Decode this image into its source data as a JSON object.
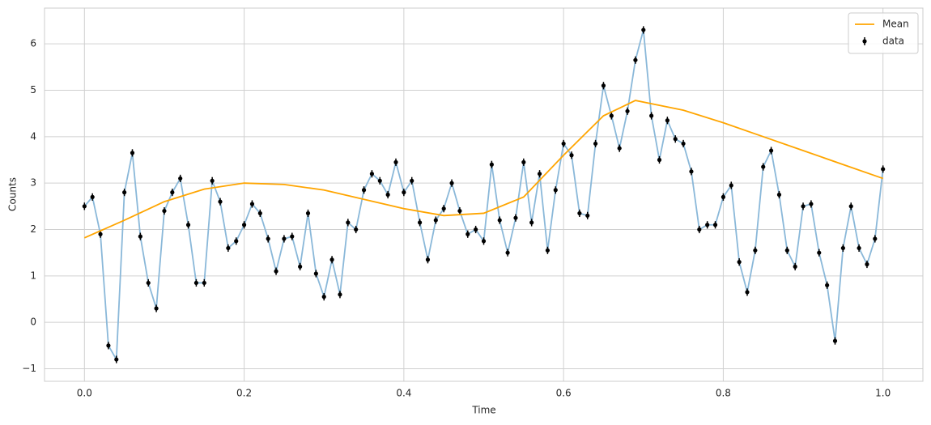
{
  "chart_data": {
    "type": "errorbar-line",
    "xlabel": "Time",
    "ylabel": "Counts",
    "xlim": [
      -0.05,
      1.05
    ],
    "ylim": [
      -1.27,
      6.77
    ],
    "xticks": [
      {
        "value": 0,
        "label": "0.0"
      },
      0.2,
      0.4,
      0.6,
      0.8,
      {
        "value": 1,
        "label": "1.0"
      }
    ],
    "yticks": [
      {
        "value": -1,
        "label": "−1"
      },
      0,
      1,
      2,
      3,
      4,
      5,
      6
    ],
    "grid": true,
    "legend": "upper right",
    "series": [
      {
        "name": "Mean",
        "color": "#ffa500",
        "x": [
          0,
          0.05,
          0.1,
          0.15,
          0.2,
          0.25,
          0.3,
          0.35,
          0.4,
          0.45,
          0.5,
          0.55,
          0.6,
          0.65,
          0.69,
          0.75,
          0.8,
          0.85,
          0.9,
          0.95,
          1.0
        ],
        "values": [
          1.82,
          2.2,
          2.6,
          2.87,
          3.0,
          2.97,
          2.85,
          2.65,
          2.45,
          2.3,
          2.35,
          2.7,
          3.6,
          4.45,
          4.78,
          4.57,
          4.3,
          4.0,
          3.7,
          3.4,
          3.1
        ]
      },
      {
        "name": "data",
        "color": "#000000",
        "line_color": "#8ab8d9",
        "yerr": 0.08,
        "x": [
          0,
          0.01,
          0.02,
          0.03,
          0.04,
          0.05,
          0.06,
          0.07,
          0.08,
          0.09,
          0.1,
          0.11,
          0.12,
          0.13,
          0.14,
          0.15,
          0.16,
          0.17,
          0.18,
          0.19,
          0.2,
          0.21,
          0.22,
          0.23,
          0.24,
          0.25,
          0.26,
          0.27,
          0.28,
          0.29,
          0.3,
          0.31,
          0.32,
          0.33,
          0.34,
          0.35,
          0.36,
          0.37,
          0.38,
          0.39,
          0.4,
          0.41,
          0.42,
          0.43,
          0.44,
          0.45,
          0.46,
          0.47,
          0.48,
          0.49,
          0.5,
          0.51,
          0.52,
          0.53,
          0.54,
          0.55,
          0.56,
          0.57,
          0.58,
          0.59,
          0.6,
          0.61,
          0.62,
          0.63,
          0.64,
          0.65,
          0.66,
          0.67,
          0.68,
          0.69,
          0.7,
          0.71,
          0.72,
          0.73,
          0.74,
          0.75,
          0.76,
          0.77,
          0.78,
          0.79,
          0.8,
          0.81,
          0.82,
          0.83,
          0.84,
          0.85,
          0.86,
          0.87,
          0.88,
          0.89,
          0.9,
          0.91,
          0.92,
          0.93,
          0.94,
          0.95,
          0.96,
          0.97,
          0.98,
          0.99,
          1.0
        ],
        "values": [
          2.5,
          2.7,
          1.9,
          -0.5,
          -0.8,
          2.8,
          3.65,
          1.85,
          0.85,
          0.3,
          2.4,
          2.8,
          3.1,
          2.1,
          0.85,
          0.85,
          3.05,
          2.6,
          1.6,
          1.75,
          2.1,
          2.55,
          2.35,
          1.8,
          1.1,
          1.8,
          1.85,
          1.2,
          2.35,
          1.05,
          0.55,
          1.35,
          0.6,
          2.15,
          2.0,
          2.85,
          3.2,
          3.05,
          2.75,
          3.45,
          2.8,
          3.05,
          2.15,
          1.35,
          2.2,
          2.45,
          3.0,
          2.4,
          1.9,
          2.0,
          1.75,
          3.4,
          2.2,
          1.5,
          2.25,
          3.45,
          2.15,
          3.2,
          1.55,
          2.85,
          3.85,
          3.6,
          2.35,
          2.3,
          3.85,
          5.1,
          4.45,
          3.75,
          4.55,
          5.65,
          6.3,
          4.45,
          3.5,
          4.35,
          3.95,
          3.85,
          3.25,
          2.0,
          2.1,
          2.1,
          2.7,
          2.95,
          1.3,
          0.65,
          1.55,
          3.35,
          3.7,
          2.75,
          1.55,
          1.2,
          2.5,
          2.55,
          1.5,
          0.8,
          -0.4,
          1.6,
          2.5,
          1.6,
          1.25,
          1.8,
          3.3
        ]
      }
    ]
  }
}
